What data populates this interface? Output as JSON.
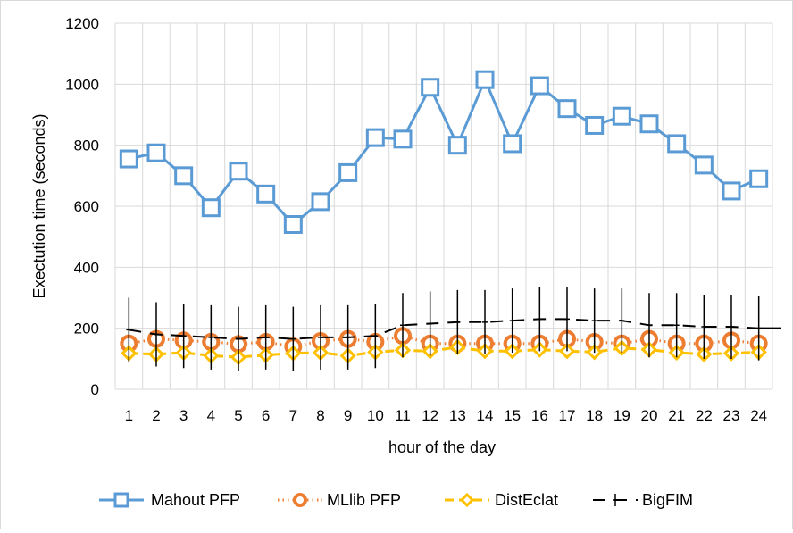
{
  "chart_data": {
    "type": "line",
    "title": "",
    "xlabel": "hour of the day",
    "ylabel": "Exectution time (seconds)",
    "categories": [
      "1",
      "2",
      "3",
      "4",
      "5",
      "6",
      "7",
      "8",
      "9",
      "10",
      "11",
      "12",
      "13",
      "14",
      "15",
      "16",
      "17",
      "18",
      "19",
      "20",
      "21",
      "22",
      "23",
      "24"
    ],
    "ylim": [
      0,
      1200
    ],
    "yticks": [
      "0",
      "200",
      "400",
      "600",
      "800",
      "1000",
      "1200"
    ],
    "grid": "vertical and horizontal",
    "legend": "bottom",
    "series": [
      {
        "name": "Mahout PFP",
        "color": "#5b9bd5",
        "marker": "square",
        "line": "solid",
        "values": [
          755,
          775,
          700,
          595,
          715,
          640,
          540,
          615,
          710,
          825,
          820,
          990,
          800,
          1015,
          805,
          995,
          920,
          865,
          895,
          870,
          805,
          735,
          650,
          690
        ]
      },
      {
        "name": "MLlib PFP",
        "color": "#ed7d31",
        "marker": "circle",
        "line": "dotted",
        "values": [
          150,
          165,
          160,
          155,
          148,
          155,
          140,
          158,
          165,
          155,
          175,
          150,
          150,
          150,
          150,
          150,
          165,
          155,
          150,
          165,
          150,
          150,
          160,
          150
        ]
      },
      {
        "name": "DistEclat",
        "color": "#ffc000",
        "marker": "diamond",
        "line": "dashed",
        "values": [
          118,
          115,
          120,
          110,
          105,
          112,
          118,
          120,
          110,
          122,
          128,
          125,
          138,
          125,
          125,
          130,
          125,
          122,
          135,
          130,
          120,
          115,
          118,
          122
        ]
      },
      {
        "name": "BigFIM",
        "color": "#000000",
        "marker": "plus",
        "line": "long-dash",
        "values": [
          195,
          180,
          175,
          170,
          165,
          170,
          165,
          170,
          170,
          175,
          210,
          215,
          220,
          220,
          225,
          230,
          230,
          225,
          225,
          210,
          210,
          205,
          205,
          200
        ]
      }
    ]
  }
}
